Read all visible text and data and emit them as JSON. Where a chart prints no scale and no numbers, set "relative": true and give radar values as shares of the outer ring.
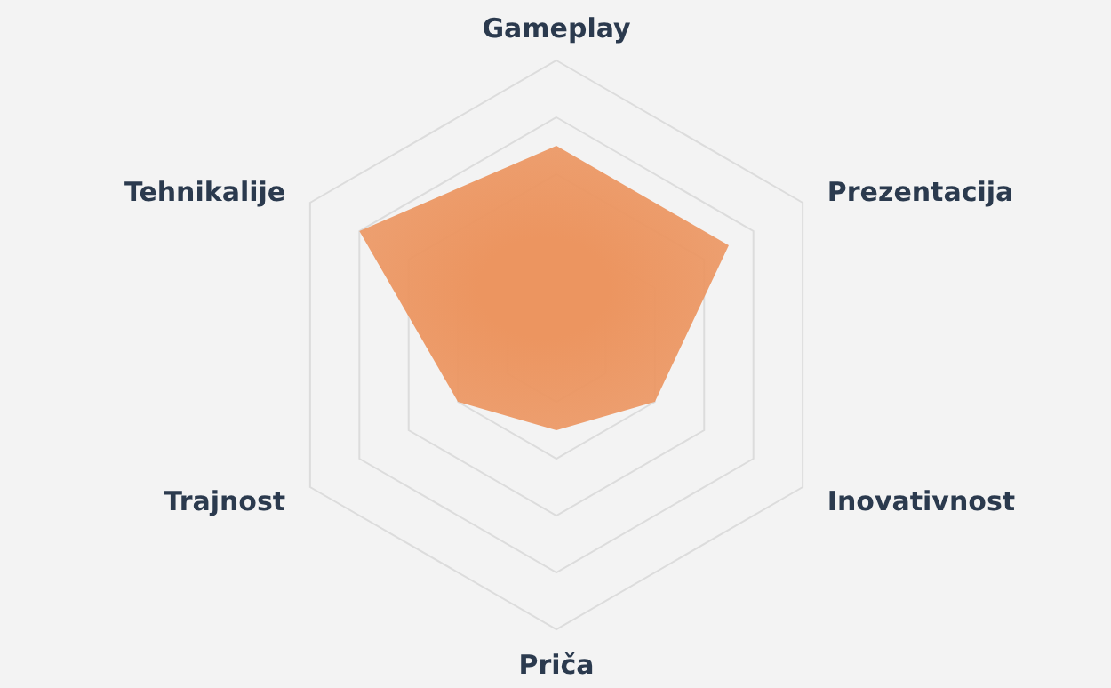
{
  "chart_data": {
    "type": "radar",
    "relative": true,
    "grid": true,
    "categories": [
      "Gameplay",
      "Prezentacija",
      "Inovativnost",
      "Priča",
      "Trajnost",
      "Tehnikalije"
    ],
    "series": [
      {
        "color": "#ec9560",
        "values": [
          0.7,
          0.7,
          0.4,
          0.3,
          0.4,
          0.8
        ]
      }
    ]
  }
}
